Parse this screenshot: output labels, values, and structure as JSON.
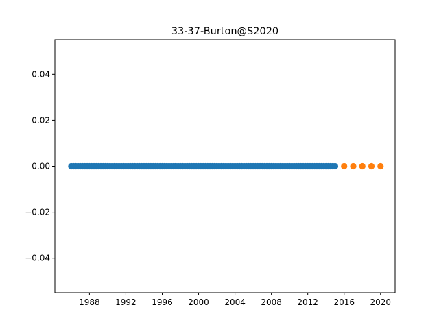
{
  "chart_data": {
    "type": "scatter",
    "title": "33-37-Burton@S2020",
    "xlabel": "",
    "ylabel": "",
    "xlim": [
      1984.2,
      2021.6
    ],
    "ylim": [
      -0.055,
      0.055
    ],
    "grid": false,
    "x_ticks": [
      "1988",
      "1992",
      "1996",
      "2000",
      "2004",
      "2008",
      "2012",
      "2016",
      "2020"
    ],
    "x_tick_values": [
      1988,
      1992,
      1996,
      2000,
      2004,
      2008,
      2012,
      2016,
      2020
    ],
    "y_ticks": [
      "−0.04",
      "−0.02",
      "0.00",
      "0.02",
      "0.04"
    ],
    "y_tick_values": [
      -0.04,
      -0.02,
      0.0,
      0.02,
      0.04
    ],
    "series": [
      {
        "color": "#1f77b4",
        "x_start": 1986.0,
        "x_end": 2015.0,
        "x_step": 0.25,
        "y": 0.0
      },
      {
        "color": "#ff7f0e",
        "x": [
          2016,
          2017,
          2018,
          2019,
          2020
        ],
        "y": [
          0.0,
          0.0,
          0.0,
          0.0,
          0.0
        ]
      }
    ]
  }
}
